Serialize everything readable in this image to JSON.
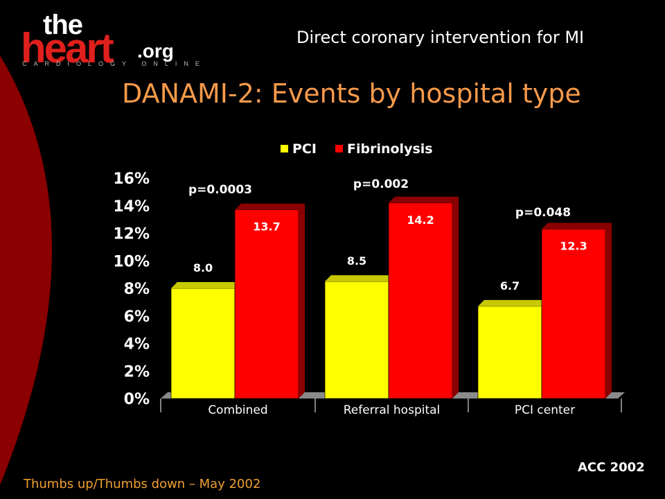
{
  "header": {
    "logo_the": "the",
    "logo_heart": "heart",
    "logo_org": ".org",
    "logo_subtitle": "CARDIOLOGY ONLINE",
    "topic": "Direct coronary intervention for MI"
  },
  "slide": {
    "title": "DANAMI-2: Events by hospital type",
    "source": "ACC 2002",
    "footer": "Thumbs up/Thumbs down – May 2002"
  },
  "colors": {
    "pci": "#ffff00",
    "pci_top": "#c8c800",
    "fibrinolysis": "#ff0000",
    "fibrinolysis_side": "#8b0000",
    "title": "#f79a4b",
    "decor_red": "#8b0000"
  },
  "chart_data": {
    "type": "bar",
    "categories": [
      "Combined",
      "Referral hospital",
      "PCI center"
    ],
    "series": [
      {
        "name": "PCI",
        "values": [
          8.0,
          8.5,
          6.7
        ]
      },
      {
        "name": "Fibrinolysis",
        "values": [
          13.7,
          14.2,
          12.3
        ]
      }
    ],
    "data_labels": [
      [
        "8.0",
        "8.5",
        "6.7"
      ],
      [
        "13.7",
        "14.2",
        "12.3"
      ]
    ],
    "annotations": [
      "p=0.0003",
      "p=0.002",
      "p=0.048"
    ],
    "yticks": [
      "0%",
      "2%",
      "4%",
      "6%",
      "8%",
      "10%",
      "12%",
      "14%",
      "16%"
    ],
    "ylim": [
      0,
      16
    ],
    "legend_position": "top",
    "grid": false
  }
}
